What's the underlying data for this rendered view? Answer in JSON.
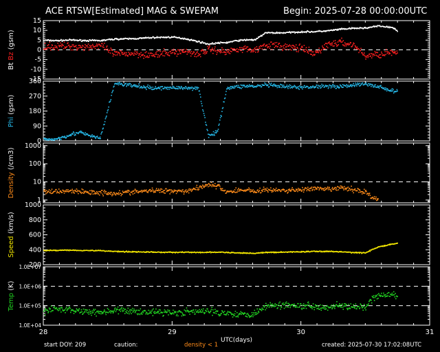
{
  "header": {
    "title": "ACE RTSW[Estimated] MAG & SWEPAM",
    "begin": "Begin: 2025-07-28 00:00:00UTC"
  },
  "footer": {
    "start_doy": "start DOY: 209",
    "caution": "caution:",
    "density_note": "density < 1",
    "created": "created: 2025-07-30 17:02:08UTC"
  },
  "colors": {
    "background": "#000000",
    "axes": "#ffffff",
    "bt": "#ffffff",
    "bz": "#ff2020",
    "phi": "#26b8e8",
    "density": "#ff8c1a",
    "speed": "#f2e600",
    "temp": "#22d622"
  },
  "chart_data": {
    "type": "scatter",
    "x_axis": {
      "label": "UTC(days)",
      "range": [
        28,
        31
      ],
      "ticks": [
        "28",
        "29",
        "30",
        "31"
      ]
    },
    "panels": [
      {
        "id": "mag",
        "ylabel_parts": [
          "Bt",
          "Bz",
          "(gsm)"
        ],
        "ylim": [
          -15,
          15
        ],
        "scale": "linear",
        "yticks": [
          15,
          10,
          5,
          0,
          -5,
          -10,
          -15
        ],
        "ytick_labels": [
          "15",
          "10",
          "5",
          "0",
          "-5",
          "-10",
          "-15"
        ],
        "dashed_lines": [
          0
        ],
        "series": [
          {
            "name": "Bt",
            "color_key": "bt",
            "noise": 0.35,
            "points": [
              [
                28.0,
                5.2
              ],
              [
                28.1,
                5.0
              ],
              [
                28.2,
                5.3
              ],
              [
                28.3,
                5.1
              ],
              [
                28.44,
                5.0
              ],
              [
                28.55,
                5.8
              ],
              [
                28.7,
                6.0
              ],
              [
                28.85,
                6.6
              ],
              [
                29.0,
                6.8
              ],
              [
                29.1,
                6.0
              ],
              [
                29.2,
                4.5
              ],
              [
                29.28,
                3.2
              ],
              [
                29.35,
                3.8
              ],
              [
                29.42,
                4.0
              ],
              [
                29.5,
                5.0
              ],
              [
                29.6,
                5.5
              ],
              [
                29.64,
                5.3
              ],
              [
                29.72,
                9.0
              ],
              [
                29.85,
                9.0
              ],
              [
                30.0,
                9.5
              ],
              [
                30.1,
                9.6
              ],
              [
                30.2,
                10.0
              ],
              [
                30.3,
                10.8
              ],
              [
                30.4,
                11.3
              ],
              [
                30.5,
                11.5
              ],
              [
                30.6,
                12.5
              ],
              [
                30.7,
                11.8
              ],
              [
                30.75,
                10.0
              ]
            ]
          },
          {
            "name": "Bz",
            "color_key": "bz",
            "noise": 1.6,
            "points": [
              [
                28.0,
                2.0
              ],
              [
                28.1,
                2.0
              ],
              [
                28.2,
                2.2
              ],
              [
                28.3,
                1.8
              ],
              [
                28.44,
                2.5
              ],
              [
                28.55,
                -2.0
              ],
              [
                28.7,
                -1.5
              ],
              [
                28.85,
                -2.5
              ],
              [
                29.0,
                -1.0
              ],
              [
                29.1,
                -0.5
              ],
              [
                29.2,
                -2.0
              ],
              [
                29.28,
                0.5
              ],
              [
                29.35,
                0.0
              ],
              [
                29.42,
                -1.0
              ],
              [
                29.5,
                1.0
              ],
              [
                29.6,
                0.5
              ],
              [
                29.64,
                0.0
              ],
              [
                29.72,
                3.0
              ],
              [
                29.85,
                2.0
              ],
              [
                30.0,
                1.0
              ],
              [
                30.1,
                -2.0
              ],
              [
                30.2,
                3.0
              ],
              [
                30.3,
                4.0
              ],
              [
                30.4,
                3.0
              ],
              [
                30.5,
                -3.0
              ],
              [
                30.6,
                -2.0
              ],
              [
                30.7,
                -1.0
              ],
              [
                30.75,
                -2.0
              ]
            ]
          }
        ]
      },
      {
        "id": "phi",
        "ylabel_parts": [
          "Phi",
          "(gsm)"
        ],
        "ylim": [
          0,
          360
        ],
        "scale": "linear",
        "yticks": [
          360,
          270,
          180,
          90,
          0
        ],
        "ytick_labels": [
          "360",
          "270",
          "180",
          "90",
          "0"
        ],
        "dashed_lines": [],
        "series": [
          {
            "name": "Phi",
            "color_key": "phi",
            "noise": 10,
            "points": [
              [
                28.0,
                10
              ],
              [
                28.1,
                15
              ],
              [
                28.2,
                40
              ],
              [
                28.28,
                55
              ],
              [
                28.35,
                35
              ],
              [
                28.44,
                20
              ],
              [
                28.55,
                350
              ],
              [
                28.7,
                335
              ],
              [
                28.85,
                320
              ],
              [
                29.0,
                325
              ],
              [
                29.1,
                320
              ],
              [
                29.2,
                325
              ],
              [
                29.28,
                30
              ],
              [
                29.35,
                60
              ],
              [
                29.42,
                320
              ],
              [
                29.5,
                330
              ],
              [
                29.6,
                335
              ],
              [
                29.64,
                330
              ],
              [
                29.72,
                340
              ],
              [
                29.85,
                330
              ],
              [
                30.0,
                325
              ],
              [
                30.1,
                330
              ],
              [
                30.2,
                335
              ],
              [
                30.3,
                330
              ],
              [
                30.4,
                340
              ],
              [
                30.5,
                345
              ],
              [
                30.6,
                330
              ],
              [
                30.7,
                305
              ],
              [
                30.75,
                300
              ]
            ]
          }
        ]
      },
      {
        "id": "density",
        "ylabel_parts": [
          "Density",
          "(/cm3)"
        ],
        "ylim": [
          0.7,
          1400
        ],
        "scale": "log",
        "yticks": [
          1000,
          100,
          10,
          1
        ],
        "ytick_labels": [
          "1000",
          "100",
          "10",
          "1"
        ],
        "dashed_lines": [
          10
        ],
        "series": [
          {
            "name": "Density",
            "color_key": "density",
            "noise": 0.12,
            "points": [
              [
                28.0,
                3.0
              ],
              [
                28.1,
                3.2
              ],
              [
                28.2,
                3.5
              ],
              [
                28.3,
                3.0
              ],
              [
                28.44,
                2.8
              ],
              [
                28.55,
                2.5
              ],
              [
                28.7,
                3.0
              ],
              [
                28.85,
                3.5
              ],
              [
                29.0,
                3.5
              ],
              [
                29.1,
                3.3
              ],
              [
                29.2,
                5.0
              ],
              [
                29.28,
                8.0
              ],
              [
                29.35,
                6.0
              ],
              [
                29.42,
                3.0
              ],
              [
                29.5,
                3.5
              ],
              [
                29.6,
                4.0
              ],
              [
                29.64,
                3.0
              ],
              [
                29.72,
                4.0
              ],
              [
                29.85,
                3.5
              ],
              [
                30.0,
                4.0
              ],
              [
                30.1,
                4.5
              ],
              [
                30.2,
                4.0
              ],
              [
                30.3,
                5.0
              ],
              [
                30.4,
                4.0
              ],
              [
                30.5,
                3.0
              ],
              [
                30.55,
                1.5
              ],
              [
                30.6,
                1.0
              ]
            ]
          }
        ]
      },
      {
        "id": "speed",
        "ylabel_parts": [
          "Speed",
          "(km/s)"
        ],
        "ylim": [
          200,
          1000
        ],
        "scale": "linear",
        "yticks": [
          1000,
          800,
          600,
          400,
          200
        ],
        "ytick_labels": [
          "1000",
          "800",
          "600",
          "400",
          "200"
        ],
        "dashed_lines": [],
        "series": [
          {
            "name": "Speed",
            "color_key": "speed",
            "noise": 6,
            "points": [
              [
                28.0,
                395
              ],
              [
                28.1,
                400
              ],
              [
                28.2,
                402
              ],
              [
                28.3,
                398
              ],
              [
                28.44,
                395
              ],
              [
                28.55,
                385
              ],
              [
                28.7,
                380
              ],
              [
                28.85,
                375
              ],
              [
                29.0,
                372
              ],
              [
                29.1,
                375
              ],
              [
                29.2,
                370
              ],
              [
                29.28,
                372
              ],
              [
                29.35,
                375
              ],
              [
                29.42,
                370
              ],
              [
                29.5,
                365
              ],
              [
                29.6,
                362
              ],
              [
                29.64,
                360
              ],
              [
                29.72,
                370
              ],
              [
                29.85,
                375
              ],
              [
                30.0,
                380
              ],
              [
                30.1,
                385
              ],
              [
                30.2,
                385
              ],
              [
                30.3,
                380
              ],
              [
                30.4,
                370
              ],
              [
                30.5,
                365
              ],
              [
                30.55,
                410
              ],
              [
                30.6,
                445
              ],
              [
                30.7,
                480
              ],
              [
                30.75,
                490
              ]
            ]
          }
        ]
      },
      {
        "id": "temp",
        "ylabel_parts": [
          "Temp",
          "(K)"
        ],
        "ylim": [
          10000,
          10000000
        ],
        "scale": "log",
        "yticks": [
          10000000,
          1000000,
          100000,
          10000
        ],
        "ytick_labels": [
          "1.0E+07",
          "1.0E+06",
          "1.0E+05",
          "1.0E+04"
        ],
        "dashed_lines": [
          1000000,
          100000
        ],
        "series": [
          {
            "name": "Temp",
            "color_key": "temp",
            "noise": 0.15,
            "points": [
              [
                28.0,
                60000
              ],
              [
                28.1,
                75000
              ],
              [
                28.2,
                65000
              ],
              [
                28.3,
                55000
              ],
              [
                28.44,
                50000
              ],
              [
                28.55,
                60000
              ],
              [
                28.7,
                55000
              ],
              [
                28.85,
                50000
              ],
              [
                29.0,
                48000
              ],
              [
                29.1,
                50000
              ],
              [
                29.2,
                52000
              ],
              [
                29.28,
                55000
              ],
              [
                29.35,
                50000
              ],
              [
                29.42,
                45000
              ],
              [
                29.5,
                40000
              ],
              [
                29.6,
                38000
              ],
              [
                29.64,
                45000
              ],
              [
                29.72,
                100000
              ],
              [
                29.85,
                120000
              ],
              [
                30.0,
                110000
              ],
              [
                30.1,
                100000
              ],
              [
                30.2,
                90000
              ],
              [
                30.3,
                110000
              ],
              [
                30.4,
                90000
              ],
              [
                30.5,
                80000
              ],
              [
                30.55,
                250000
              ],
              [
                30.6,
                350000
              ],
              [
                30.7,
                400000
              ],
              [
                30.75,
                300000
              ]
            ]
          }
        ]
      }
    ]
  }
}
